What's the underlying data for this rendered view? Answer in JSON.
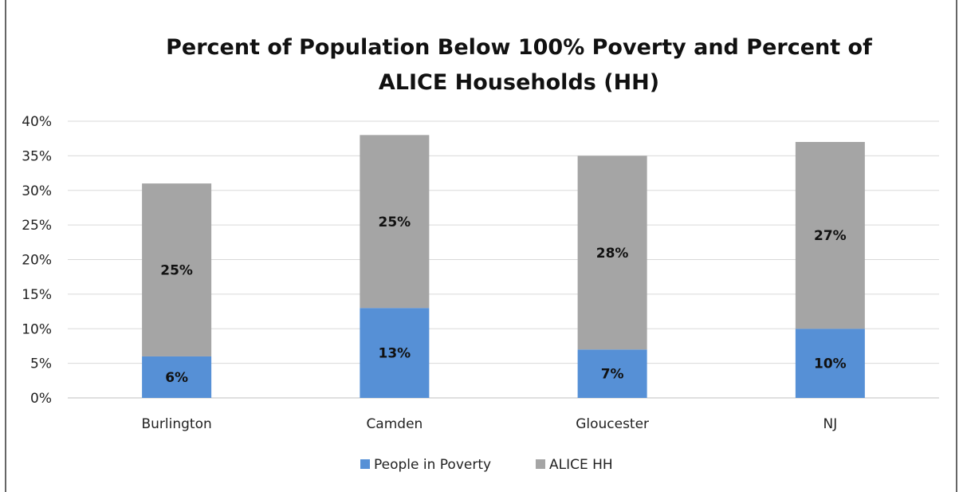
{
  "chart_data": {
    "type": "bar",
    "stacked": true,
    "title": "Percent of Population Below 100% Poverty and Percent of ALICE Households (HH)",
    "title_lines": [
      "Percent of Population Below 100% Poverty and Percent of",
      "ALICE Households (HH)"
    ],
    "categories": [
      "Burlington",
      "Camden",
      "Gloucester",
      "NJ"
    ],
    "series": [
      {
        "name": "People in Poverty",
        "color": "#5690D6",
        "values": [
          6,
          13,
          7,
          10
        ],
        "labels": [
          "6%",
          "13%",
          "7%",
          "10%"
        ]
      },
      {
        "name": "ALICE HH",
        "color": "#A5A5A5",
        "values": [
          25,
          25,
          28,
          27
        ],
        "labels": [
          "25%",
          "25%",
          "28%",
          "27%"
        ]
      }
    ],
    "ylim": [
      0,
      40
    ],
    "y_ticks": [
      0,
      5,
      10,
      15,
      20,
      25,
      30,
      35,
      40
    ],
    "y_tick_labels": [
      "0%",
      "5%",
      "10%",
      "15%",
      "20%",
      "25%",
      "30%",
      "35%",
      "40%"
    ],
    "grid": true,
    "grid_color": "#D9D9D9",
    "legend_position": "bottom",
    "xlabel": "",
    "ylabel": ""
  }
}
